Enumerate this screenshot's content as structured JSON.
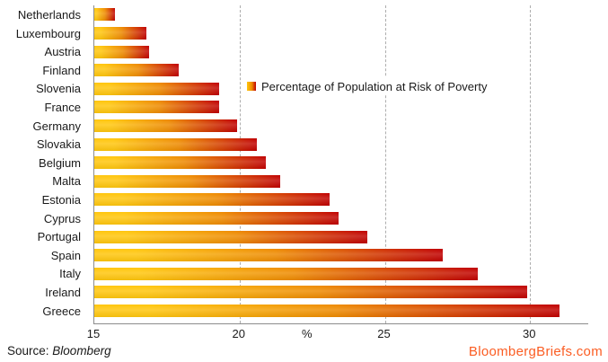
{
  "chart_data": {
    "type": "bar",
    "orientation": "horizontal",
    "title": "",
    "legend_label": "Percentage of Population at Risk of Poverty",
    "xlabel": "%",
    "categories": [
      "Netherlands",
      "Luxembourg",
      "Austria",
      "Finland",
      "Slovenia",
      "France",
      "Germany",
      "Slovakia",
      "Belgium",
      "Malta",
      "Estonia",
      "Cyprus",
      "Portugal",
      "Spain",
      "Italy",
      "Ireland",
      "Greece"
    ],
    "values": [
      15.7,
      16.8,
      16.9,
      17.9,
      19.3,
      19.3,
      19.9,
      20.6,
      20.9,
      21.4,
      23.1,
      23.4,
      24.4,
      27.0,
      28.2,
      29.9,
      31.0
    ],
    "x_ticks": [
      15,
      20,
      25,
      30
    ],
    "xlim": [
      15,
      32
    ],
    "gridlines_x": [
      20,
      25,
      30
    ],
    "grid_style": "dashed-vertical",
    "legend_position": "inside-right"
  },
  "footer": {
    "source_label": "Source:",
    "source_name": "Bloomberg",
    "watermark": "BloombergBriefs.com"
  },
  "colors": {
    "bar_gradient_start": "#FFC60D",
    "bar_gradient_mid": "#EE8A00",
    "bar_gradient_end": "#C00000",
    "gridline": "#ADADAD",
    "axis_line": "#8C8C8C",
    "text": "#1A1A1A",
    "watermark": "#FB5D23"
  }
}
